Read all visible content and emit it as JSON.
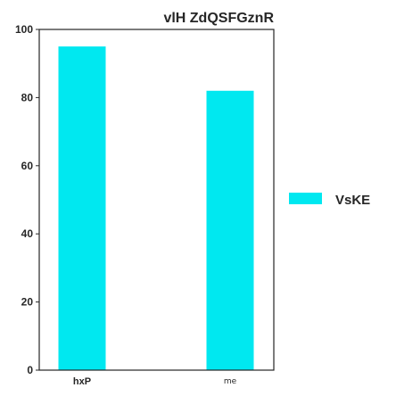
{
  "chart_data": {
    "type": "bar",
    "title": "vlH ZdQSFGznR",
    "xlabel": "",
    "ylabel": "",
    "categories": [
      "hxP",
      "me"
    ],
    "series": [
      {
        "name": "VsKE",
        "values": [
          95,
          82
        ],
        "color": "#00E8F0"
      }
    ],
    "ylim": [
      0,
      100
    ],
    "yticks": [
      0,
      20,
      40,
      60,
      80,
      100
    ],
    "grid": false,
    "legend_position": "right"
  }
}
